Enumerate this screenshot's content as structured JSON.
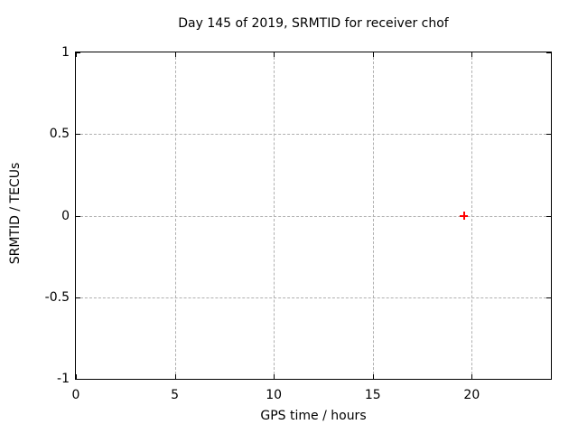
{
  "chart_data": {
    "type": "scatter",
    "title": "Day 145 of 2019, SRMTID for receiver chof",
    "xlabel": "GPS time / hours",
    "ylabel": "SRMTID / TECUs",
    "xlim": [
      0,
      24
    ],
    "ylim": [
      -1,
      1
    ],
    "xticks": {
      "values": [
        0,
        5,
        10,
        15,
        20
      ],
      "labels": [
        "0",
        "5",
        "10",
        "15",
        "20"
      ]
    },
    "yticks": {
      "values": [
        1,
        0.5,
        0,
        -0.5,
        -1
      ],
      "labels": [
        "1",
        "0.5",
        "0",
        "-0.5",
        "-1"
      ]
    },
    "grid": true,
    "grid_color": "#b0b0b0",
    "axis_color": "#000000",
    "background_color": "#ffffff",
    "legend": "none",
    "series": [
      {
        "name": "SRMTID",
        "marker": "plus",
        "color": "#ff0000",
        "points": [
          {
            "x": 19.6,
            "y": 0.0
          }
        ]
      }
    ]
  }
}
